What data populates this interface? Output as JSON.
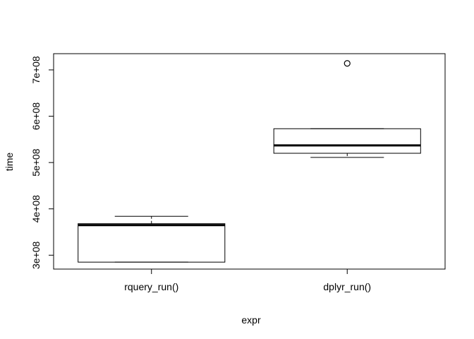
{
  "chart_data": {
    "type": "boxplot",
    "xlabel": "expr",
    "ylabel": "time",
    "ylim": [
      270000000,
      735000000
    ],
    "y_ticks": [
      {
        "value": 300000000,
        "label": "3e+08"
      },
      {
        "value": 400000000,
        "label": "4e+08"
      },
      {
        "value": 500000000,
        "label": "5e+08"
      },
      {
        "value": 600000000,
        "label": "6e+08"
      },
      {
        "value": 700000000,
        "label": "7e+08"
      }
    ],
    "categories": [
      "rquery_run()",
      "dplyr_run()"
    ],
    "boxes": [
      {
        "category": "rquery_run()",
        "min": 285000000,
        "q1": 285000000,
        "median": 365000000,
        "q3": 368000000,
        "max": 384000000,
        "outliers": []
      },
      {
        "category": "dplyr_run()",
        "min": 511000000,
        "q1": 520000000,
        "median": 537000000,
        "q3": 573000000,
        "max": 573000000,
        "outliers": [
          714000000
        ]
      }
    ]
  }
}
